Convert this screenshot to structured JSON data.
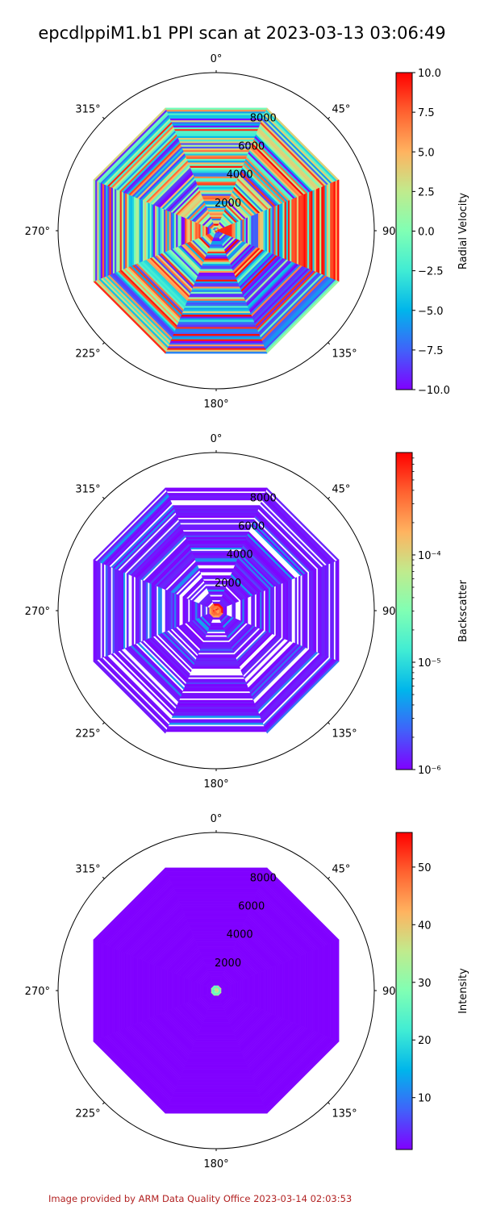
{
  "title": "epcdlppiM1.b1 PPI scan at 2023-03-13 03:06:49",
  "footer": "Image provided by ARM Data Quality Office 2023-03-14 02:03:53",
  "chart_data": [
    {
      "type": "heatmap",
      "projection": "polar",
      "theta_direction": "clockwise",
      "theta_zero": "north",
      "theta_tick_labels": [
        "0°",
        "45°",
        "90°",
        "135°",
        "180°",
        "225°",
        "270°",
        "315°"
      ],
      "radial_tick_values": [
        2000,
        4000,
        6000,
        8000
      ],
      "radial_tick_labels": [
        "2000",
        "4000",
        "6000",
        "8000"
      ],
      "rlim": [
        0,
        10300
      ],
      "scan_shape": "octagon",
      "colormap": "rainbow",
      "colorbar": {
        "label": "Radial Velocity",
        "scale": "linear",
        "range": [
          -10.0,
          10.0
        ],
        "tick_values": [
          -10.0,
          -7.5,
          -5.0,
          -2.5,
          0.0,
          2.5,
          5.0,
          7.5,
          10.0
        ],
        "tick_labels": [
          "−10.0",
          "−7.5",
          "−5.0",
          "−2.5",
          "0.0",
          "2.5",
          "5.0",
          "7.5",
          "10.0"
        ]
      },
      "field_description": "noisy, full color range across scan",
      "value_range_shown": [
        -10.0,
        10.0
      ]
    },
    {
      "type": "heatmap",
      "projection": "polar",
      "theta_direction": "clockwise",
      "theta_zero": "north",
      "theta_tick_labels": [
        "0°",
        "45°",
        "90°",
        "135°",
        "180°",
        "225°",
        "270°",
        "315°"
      ],
      "radial_tick_values": [
        2000,
        4000,
        6000,
        8000
      ],
      "radial_tick_labels": [
        "2000",
        "4000",
        "6000",
        "8000"
      ],
      "rlim": [
        0,
        10300
      ],
      "scan_shape": "octagon",
      "colormap": "rainbow",
      "colorbar": {
        "label": "Backscatter",
        "scale": "log",
        "range": [
          1e-06,
          0.0009
        ],
        "tick_values": [
          1e-06,
          1e-05,
          0.0001
        ],
        "tick_labels": [
          "10⁻⁶",
          "10⁻⁵",
          "10⁻⁴"
        ]
      },
      "field_description": "mostly near 1e-6 with many missing gaps; high values near center",
      "value_range_shown": [
        1e-06,
        0.0009
      ]
    },
    {
      "type": "heatmap",
      "projection": "polar",
      "theta_direction": "clockwise",
      "theta_zero": "north",
      "theta_tick_labels": [
        "0°",
        "45°",
        "90°",
        "135°",
        "180°",
        "225°",
        "270°",
        "315°"
      ],
      "radial_tick_values": [
        2000,
        4000,
        6000,
        8000
      ],
      "radial_tick_labels": [
        "2000",
        "4000",
        "6000",
        "8000"
      ],
      "rlim": [
        0,
        10300
      ],
      "scan_shape": "octagon",
      "colormap": "rainbow",
      "colorbar": {
        "label": "Intensity",
        "scale": "linear",
        "range": [
          1,
          56
        ],
        "tick_values": [
          10,
          20,
          30,
          40,
          50
        ],
        "tick_labels": [
          "10",
          "20",
          "30",
          "40",
          "50"
        ]
      },
      "field_description": "uniform minimum value across scan; small ring of higher values at center",
      "value_range_shown": [
        1,
        56
      ]
    }
  ]
}
